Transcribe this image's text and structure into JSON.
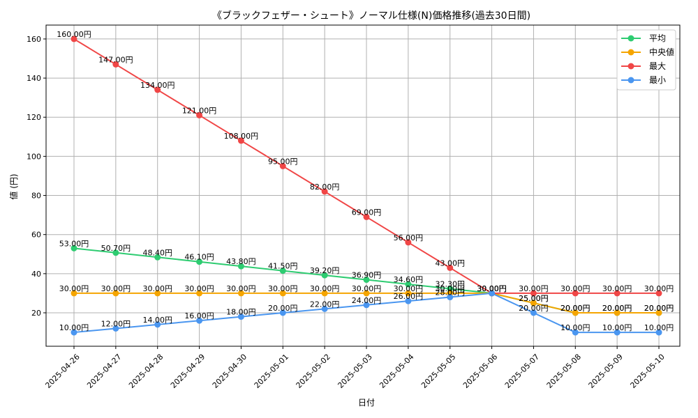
{
  "chart_data": {
    "type": "line",
    "title": "《ブラックフェザー・シュート》ノーマル仕様(N)価格推移(過去30日間)",
    "xlabel": "日付",
    "ylabel": "値 (円)",
    "ylim": [
      2.9,
      167.1
    ],
    "yticks": [
      20,
      40,
      60,
      80,
      100,
      120,
      140,
      160
    ],
    "grid": true,
    "legend_position": "top-right",
    "value_suffix": "円",
    "categories": [
      "2025-04-26",
      "2025-04-27",
      "2025-04-28",
      "2025-04-29",
      "2025-04-30",
      "2025-05-01",
      "2025-05-02",
      "2025-05-03",
      "2025-05-04",
      "2025-05-05",
      "2025-05-06",
      "2025-05-07",
      "2025-05-08",
      "2025-05-09",
      "2025-05-10"
    ],
    "series": [
      {
        "name": "平均",
        "color": "#2ecc71",
        "values": [
          53.0,
          50.7,
          48.4,
          46.1,
          43.8,
          41.5,
          39.2,
          36.9,
          34.6,
          32.3,
          30.0,
          25.0,
          20.0,
          20.0,
          20.0
        ]
      },
      {
        "name": "中央値",
        "color": "#f5a500",
        "values": [
          30.0,
          30.0,
          30.0,
          30.0,
          30.0,
          30.0,
          30.0,
          30.0,
          30.0,
          30.0,
          30.0,
          25.0,
          20.0,
          20.0,
          20.0
        ]
      },
      {
        "name": "最大",
        "color": "#f04646",
        "values": [
          160.0,
          147.0,
          134.0,
          121.0,
          108.0,
          95.0,
          82.0,
          69.0,
          56.0,
          43.0,
          30.0,
          30.0,
          30.0,
          30.0,
          30.0
        ]
      },
      {
        "name": "最小",
        "color": "#4a96f0",
        "values": [
          10.0,
          12.0,
          14.0,
          16.0,
          18.0,
          20.0,
          22.0,
          24.0,
          26.0,
          28.0,
          30.0,
          20.0,
          10.0,
          10.0,
          10.0
        ]
      }
    ]
  }
}
